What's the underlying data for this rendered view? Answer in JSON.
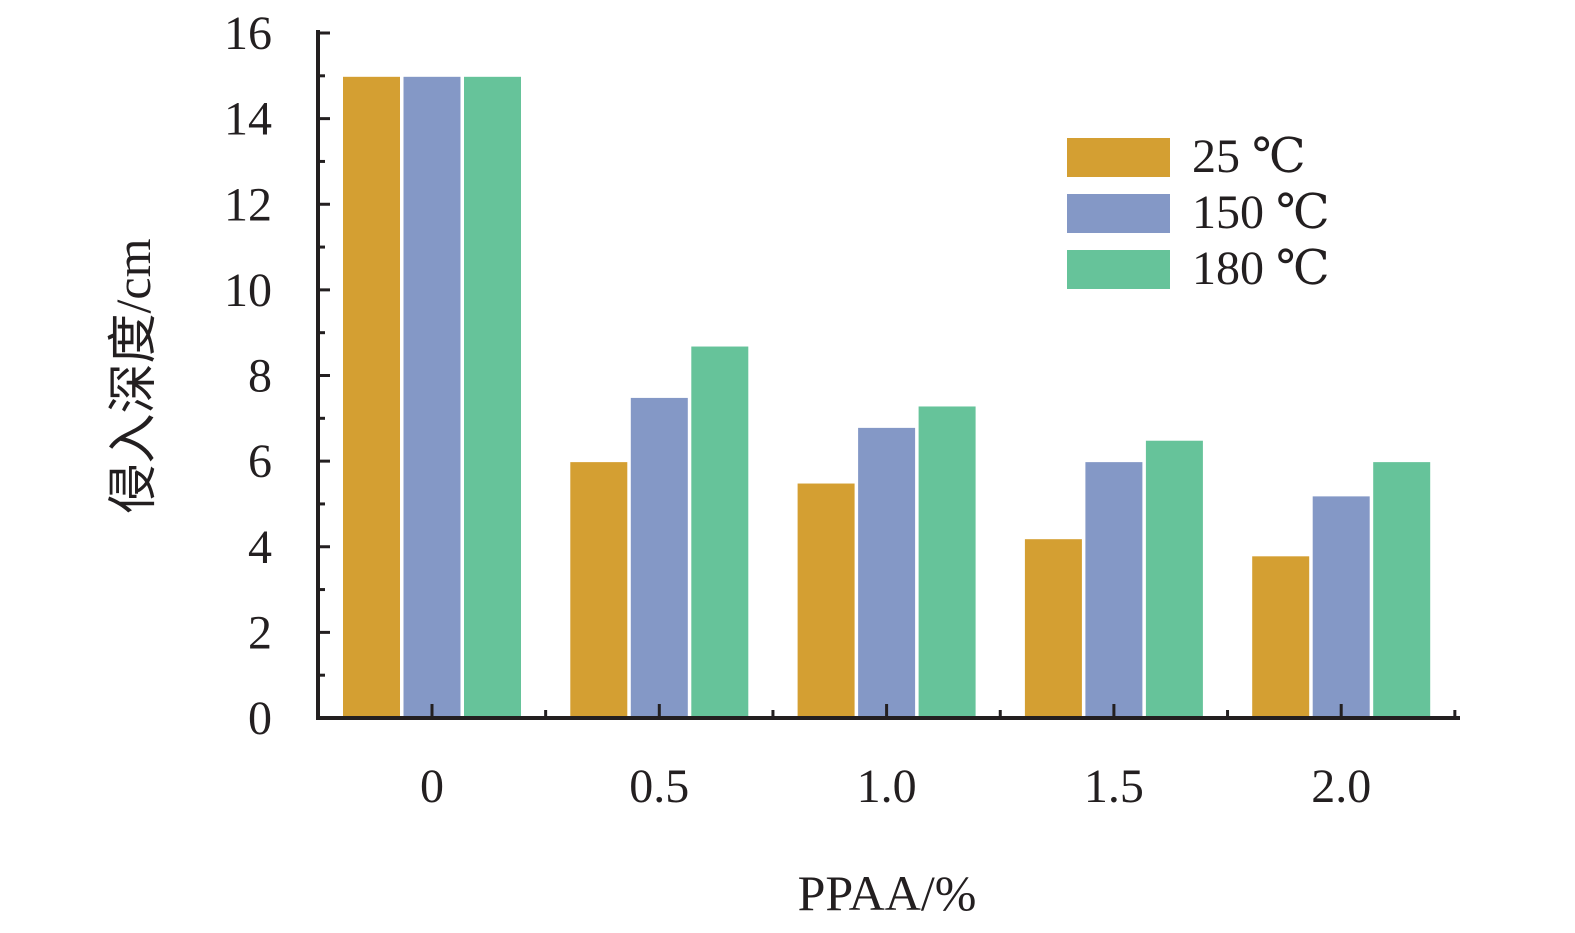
{
  "chart_data": {
    "type": "bar",
    "categories": [
      "0",
      "0.5",
      "1.0",
      "1.5",
      "2.0"
    ],
    "series": [
      {
        "name": "25 ℃",
        "values": [
          15.0,
          6.0,
          5.5,
          4.2,
          3.8
        ],
        "color": "#d49f32"
      },
      {
        "name": "150 ℃",
        "values": [
          15.0,
          7.5,
          6.8,
          6.0,
          5.2
        ],
        "color": "#8498c6"
      },
      {
        "name": "180 ℃",
        "values": [
          15.0,
          8.7,
          7.3,
          6.5,
          6.0
        ],
        "color": "#66c39a"
      }
    ],
    "xlabel": "PPAA/%",
    "ylabel": "侵入深度/cm",
    "ylim": [
      0,
      16
    ],
    "yticks": [
      "0",
      "2",
      "4",
      "6",
      "8",
      "10",
      "12",
      "14",
      "16"
    ],
    "grid": false,
    "legend_position": "top-right"
  }
}
